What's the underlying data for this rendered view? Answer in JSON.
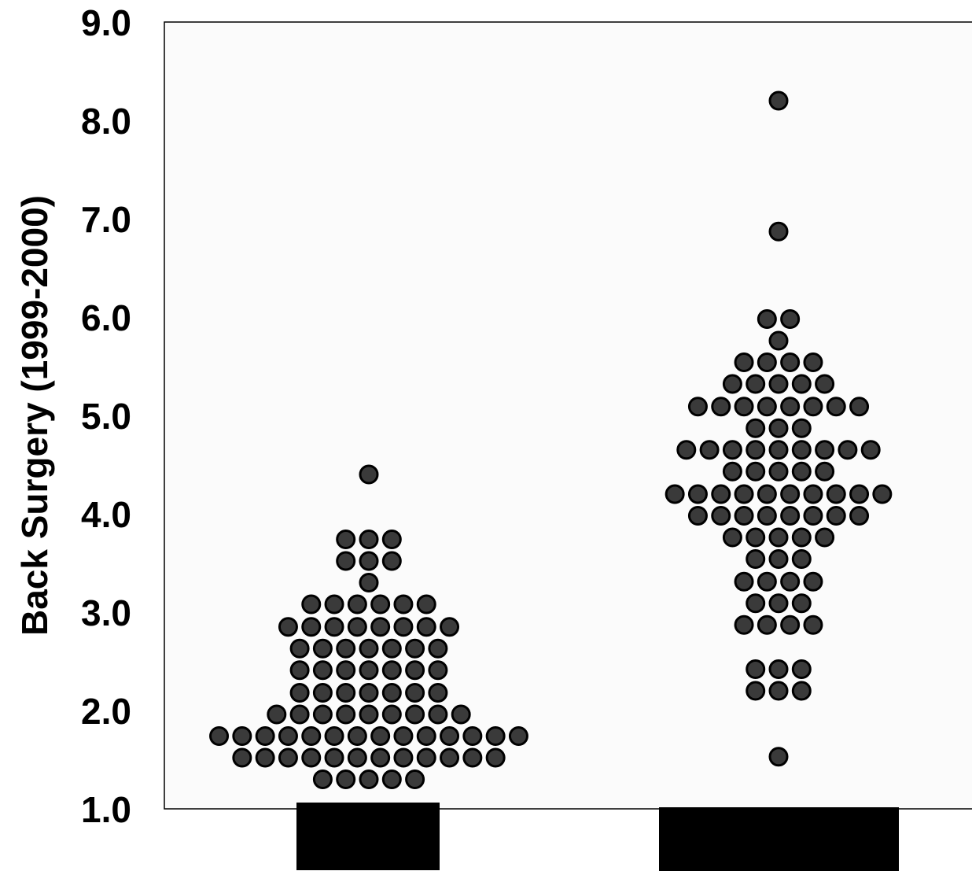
{
  "chart_data": {
    "type": "scatter",
    "subtype": "dot-plot (beeswarm)",
    "ylabel": "Back Surgery (1999-2000)",
    "xlabel": "",
    "ylim": [
      1.0,
      9.0
    ],
    "yticks": [
      "1.0",
      "2.0",
      "3.0",
      "4.0",
      "5.0",
      "6.0",
      "7.0",
      "8.0",
      "9.0"
    ],
    "grid": false,
    "categories_redacted": true,
    "colors": {
      "dot_fill": "#3a3a3a",
      "dot_stroke": "#000000",
      "plot_bg": "#fbfbfb",
      "redaction": "#000000"
    },
    "groups": [
      {
        "rows": [
          {
            "y": 4.4,
            "n": 1
          },
          {
            "y": 3.74,
            "n": 3
          },
          {
            "y": 3.52,
            "n": 3
          },
          {
            "y": 3.3,
            "n": 1
          },
          {
            "y": 3.08,
            "n": 6
          },
          {
            "y": 2.85,
            "n": 8
          },
          {
            "y": 2.63,
            "n": 7
          },
          {
            "y": 2.41,
            "n": 7
          },
          {
            "y": 2.18,
            "n": 7
          },
          {
            "y": 1.96,
            "n": 9
          },
          {
            "y": 1.74,
            "n": 14
          },
          {
            "y": 1.52,
            "n": 12
          },
          {
            "y": 1.3,
            "n": 5
          }
        ]
      },
      {
        "rows": [
          {
            "y": 8.2,
            "n": 1
          },
          {
            "y": 6.87,
            "n": 1
          },
          {
            "y": 5.98,
            "n": 2
          },
          {
            "y": 5.76,
            "n": 1
          },
          {
            "y": 5.54,
            "n": 4
          },
          {
            "y": 5.32,
            "n": 5
          },
          {
            "y": 5.09,
            "n": 8
          },
          {
            "y": 4.87,
            "n": 3
          },
          {
            "y": 4.65,
            "n": 9
          },
          {
            "y": 4.43,
            "n": 5
          },
          {
            "y": 4.2,
            "n": 10
          },
          {
            "y": 3.98,
            "n": 8
          },
          {
            "y": 3.76,
            "n": 5
          },
          {
            "y": 3.54,
            "n": 3
          },
          {
            "y": 3.31,
            "n": 4
          },
          {
            "y": 3.09,
            "n": 3
          },
          {
            "y": 2.87,
            "n": 4
          },
          {
            "y": 2.42,
            "n": 3
          },
          {
            "y": 2.2,
            "n": 3
          },
          {
            "y": 1.53,
            "n": 1
          }
        ]
      }
    ]
  }
}
